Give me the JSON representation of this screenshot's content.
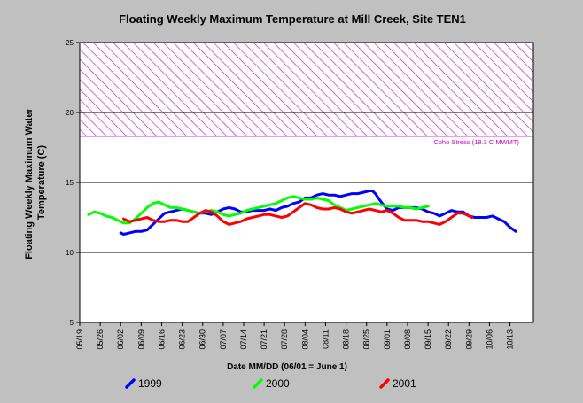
{
  "chart_data": {
    "type": "line",
    "title": "Floating Weekly Maximum Temperature at Mill Creek, Site TEN1",
    "xlabel": "Date MM/DD (06/01 = June 1)",
    "ylabel": "Floating Weekly Maximum Water Temperature (C)",
    "ylim": [
      5,
      25
    ],
    "yticks": [
      5,
      10,
      15,
      20,
      25
    ],
    "xlim_day": [
      -13,
      142
    ],
    "xticks": [
      {
        "day": -13,
        "label": "05/19"
      },
      {
        "day": -6,
        "label": "05/26"
      },
      {
        "day": 1,
        "label": "06/02"
      },
      {
        "day": 8,
        "label": "06/09"
      },
      {
        "day": 15,
        "label": "06/16"
      },
      {
        "day": 22,
        "label": "06/23"
      },
      {
        "day": 29,
        "label": "06/30"
      },
      {
        "day": 36,
        "label": "07/07"
      },
      {
        "day": 43,
        "label": "07/14"
      },
      {
        "day": 50,
        "label": "07/21"
      },
      {
        "day": 57,
        "label": "07/28"
      },
      {
        "day": 64,
        "label": "08/04"
      },
      {
        "day": 71,
        "label": "08/11"
      },
      {
        "day": 78,
        "label": "08/18"
      },
      {
        "day": 85,
        "label": "08/25"
      },
      {
        "day": 92,
        "label": "09/01"
      },
      {
        "day": 99,
        "label": "09/08"
      },
      {
        "day": 106,
        "label": "09/15"
      },
      {
        "day": 113,
        "label": "09/22"
      },
      {
        "day": 120,
        "label": "09/29"
      },
      {
        "day": 127,
        "label": "10/06"
      },
      {
        "day": 134,
        "label": "10/13"
      }
    ],
    "gridlines_y": [
      15,
      20
    ],
    "stress_band": {
      "from": 18.3,
      "to": 25,
      "label": "Coho Stress (18.3 C MWMT)",
      "color": "#cc00cc"
    },
    "legend_placement": "bottom",
    "series": [
      {
        "name": "1999",
        "color": "#0000ff",
        "x": [
          1,
          2,
          4,
          6,
          8,
          10,
          12,
          14,
          16,
          18,
          20,
          22,
          24,
          26,
          28,
          30,
          32,
          34,
          36,
          38,
          40,
          42,
          44,
          46,
          48,
          50,
          52,
          54,
          56,
          58,
          60,
          62,
          64,
          66,
          68,
          70,
          72,
          74,
          76,
          78,
          80,
          82,
          84,
          86,
          87,
          88,
          90,
          92,
          94,
          96,
          98,
          100,
          102,
          104,
          106,
          108,
          110,
          112,
          114,
          116,
          118,
          120,
          122,
          124,
          126,
          128,
          130,
          132,
          134,
          136
        ],
        "y": [
          11.4,
          11.3,
          11.4,
          11.5,
          11.5,
          11.6,
          12.0,
          12.4,
          12.8,
          12.9,
          13.0,
          13.1,
          13.0,
          12.9,
          12.8,
          12.8,
          12.7,
          12.9,
          13.1,
          13.2,
          13.1,
          12.9,
          12.9,
          13.0,
          13.0,
          13.0,
          13.1,
          13.0,
          13.2,
          13.3,
          13.5,
          13.6,
          13.9,
          13.9,
          14.1,
          14.2,
          14.1,
          14.1,
          14.0,
          14.1,
          14.2,
          14.2,
          14.3,
          14.4,
          14.4,
          14.2,
          13.6,
          13.1,
          13.0,
          13.2,
          13.2,
          13.2,
          13.2,
          13.1,
          12.9,
          12.8,
          12.6,
          12.8,
          13.0,
          12.9,
          12.9,
          12.6,
          12.5,
          12.5,
          12.5,
          12.6,
          12.4,
          12.2,
          11.8,
          11.5
        ]
      },
      {
        "name": "2000",
        "color": "#00ff00",
        "x": [
          -10,
          -8,
          -6,
          -4,
          -2,
          0,
          2,
          4,
          6,
          8,
          10,
          12,
          14,
          16,
          18,
          20,
          22,
          24,
          26,
          28,
          30,
          32,
          34,
          36,
          38,
          40,
          42,
          44,
          46,
          48,
          50,
          52,
          54,
          56,
          58,
          60,
          62,
          64,
          66,
          68,
          70,
          72,
          74,
          76,
          78,
          80,
          82,
          84,
          86,
          88,
          90,
          92,
          94,
          96,
          98,
          100,
          102,
          104,
          106
        ],
        "y": [
          12.7,
          12.9,
          12.8,
          12.6,
          12.5,
          12.3,
          12.1,
          12.1,
          12.4,
          12.8,
          13.2,
          13.5,
          13.6,
          13.4,
          13.2,
          13.2,
          13.1,
          13.0,
          12.9,
          12.8,
          12.9,
          13.0,
          12.9,
          12.7,
          12.6,
          12.7,
          12.8,
          13.0,
          13.1,
          13.2,
          13.3,
          13.4,
          13.5,
          13.7,
          13.9,
          14.0,
          13.9,
          13.8,
          13.8,
          13.9,
          13.8,
          13.7,
          13.4,
          13.2,
          13.0,
          13.1,
          13.2,
          13.3,
          13.4,
          13.5,
          13.4,
          13.3,
          13.3,
          13.3,
          13.2,
          13.2,
          13.1,
          13.2,
          13.3
        ]
      },
      {
        "name": "2001",
        "color": "#ff0000",
        "x": [
          2,
          4,
          6,
          8,
          10,
          12,
          14,
          16,
          18,
          20,
          22,
          24,
          26,
          28,
          30,
          32,
          34,
          36,
          38,
          40,
          42,
          44,
          46,
          48,
          50,
          52,
          54,
          56,
          58,
          60,
          62,
          64,
          66,
          68,
          70,
          72,
          74,
          76,
          78,
          80,
          82,
          84,
          86,
          88,
          90,
          92,
          94,
          96,
          98,
          100,
          102,
          104,
          106,
          108,
          110,
          112,
          114,
          116,
          118,
          120,
          121
        ],
        "y": [
          12.4,
          12.2,
          12.3,
          12.4,
          12.5,
          12.3,
          12.2,
          12.2,
          12.3,
          12.3,
          12.2,
          12.2,
          12.5,
          12.8,
          13.0,
          12.9,
          12.6,
          12.2,
          12.0,
          12.1,
          12.2,
          12.4,
          12.5,
          12.6,
          12.7,
          12.7,
          12.6,
          12.5,
          12.6,
          12.9,
          13.2,
          13.5,
          13.4,
          13.2,
          13.1,
          13.1,
          13.2,
          13.1,
          12.9,
          12.8,
          12.9,
          13.0,
          13.1,
          13.0,
          12.9,
          13.0,
          12.8,
          12.5,
          12.3,
          12.3,
          12.3,
          12.2,
          12.2,
          12.1,
          12.0,
          12.2,
          12.5,
          12.8,
          12.8,
          12.6,
          12.5
        ]
      }
    ]
  }
}
